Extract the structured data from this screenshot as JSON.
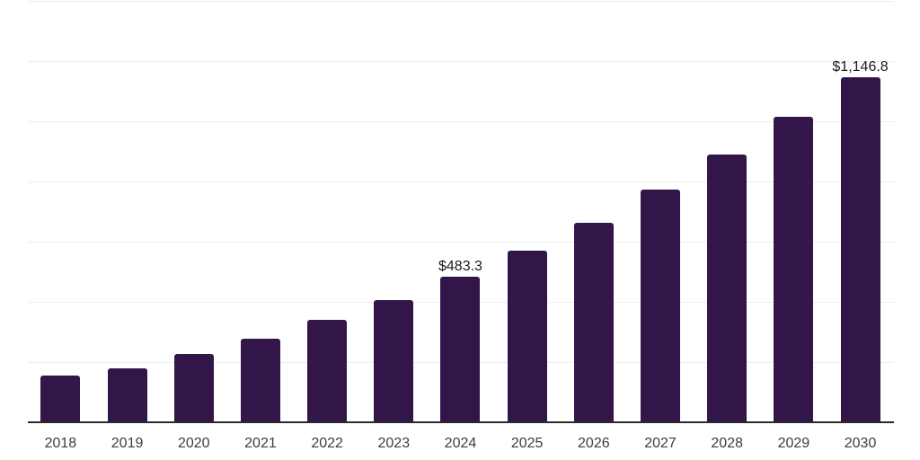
{
  "chart_data": {
    "type": "bar",
    "title": "",
    "xlabel": "",
    "ylabel": "",
    "categories": [
      "2018",
      "2019",
      "2020",
      "2021",
      "2022",
      "2023",
      "2024",
      "2025",
      "2026",
      "2027",
      "2028",
      "2029",
      "2030"
    ],
    "values": [
      154,
      180,
      228,
      278,
      340,
      405,
      483.3,
      569,
      662,
      773,
      890,
      1016,
      1146.8
    ],
    "data_labels": [
      "",
      "",
      "",
      "",
      "",
      "",
      "$483.3",
      "",
      "",
      "",
      "",
      "",
      "$1,146.8"
    ],
    "ylim": [
      0,
      1400
    ],
    "gridline_step": 200,
    "grid": "horizontal-only",
    "legend_position": "none",
    "y_axis_tick_labels_visible": false,
    "bar_color": "#321549",
    "axis_color": "#2b2b2b",
    "gridline_color": "#ededed",
    "tick_label_color": "#3d3d3d",
    "value_label_color": "#1a1a1a",
    "background_color": "#ffffff"
  }
}
